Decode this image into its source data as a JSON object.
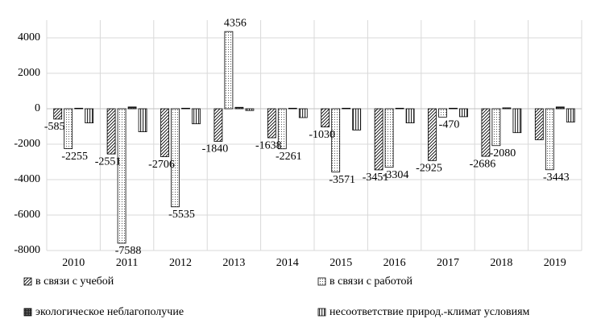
{
  "chart_data": {
    "type": "bar",
    "categories": [
      "2010",
      "2011",
      "2012",
      "2013",
      "2014",
      "2015",
      "2016",
      "2017",
      "2018",
      "2019"
    ],
    "series": [
      {
        "name": "в связи с учебой",
        "color": "#000000",
        "pattern": "diagonal",
        "values": [
          -585,
          -2551,
          -2706,
          -1840,
          -1638,
          -1030,
          -3451,
          -2925,
          -2686,
          -1750
        ],
        "value_labels": [
          "-585",
          "-2551",
          "-2706",
          "-1840",
          "-1638",
          "-1030",
          "-3451",
          "-2925",
          "-2686",
          null
        ]
      },
      {
        "name": "в связи с работой",
        "color": "#000000",
        "pattern": "dots",
        "values": [
          -2255,
          -7588,
          -5535,
          4356,
          -2261,
          -3571,
          -3304,
          -470,
          -2080,
          -3443
        ],
        "value_labels": [
          "-2255",
          "-7588",
          "-5535",
          "4356",
          "-2261",
          "-3571",
          "-3304",
          "-470",
          "-2080",
          "-3443"
        ]
      },
      {
        "name": "экологическое неблагополучие",
        "color": "#000000",
        "pattern": "checker",
        "values": [
          30,
          100,
          30,
          80,
          30,
          30,
          30,
          30,
          50,
          100
        ]
      },
      {
        "name": "несоответствие природ.-климат условиям",
        "color": "#000000",
        "pattern": "vertical",
        "values": [
          -800,
          -1300,
          -850,
          -100,
          -500,
          -1200,
          -800,
          -450,
          -1350,
          -750
        ]
      }
    ],
    "ylim": [
      -8000,
      5000
    ],
    "yticks": [
      -8000,
      -6000,
      -4000,
      -2000,
      0,
      2000,
      4000
    ],
    "grid": true
  }
}
